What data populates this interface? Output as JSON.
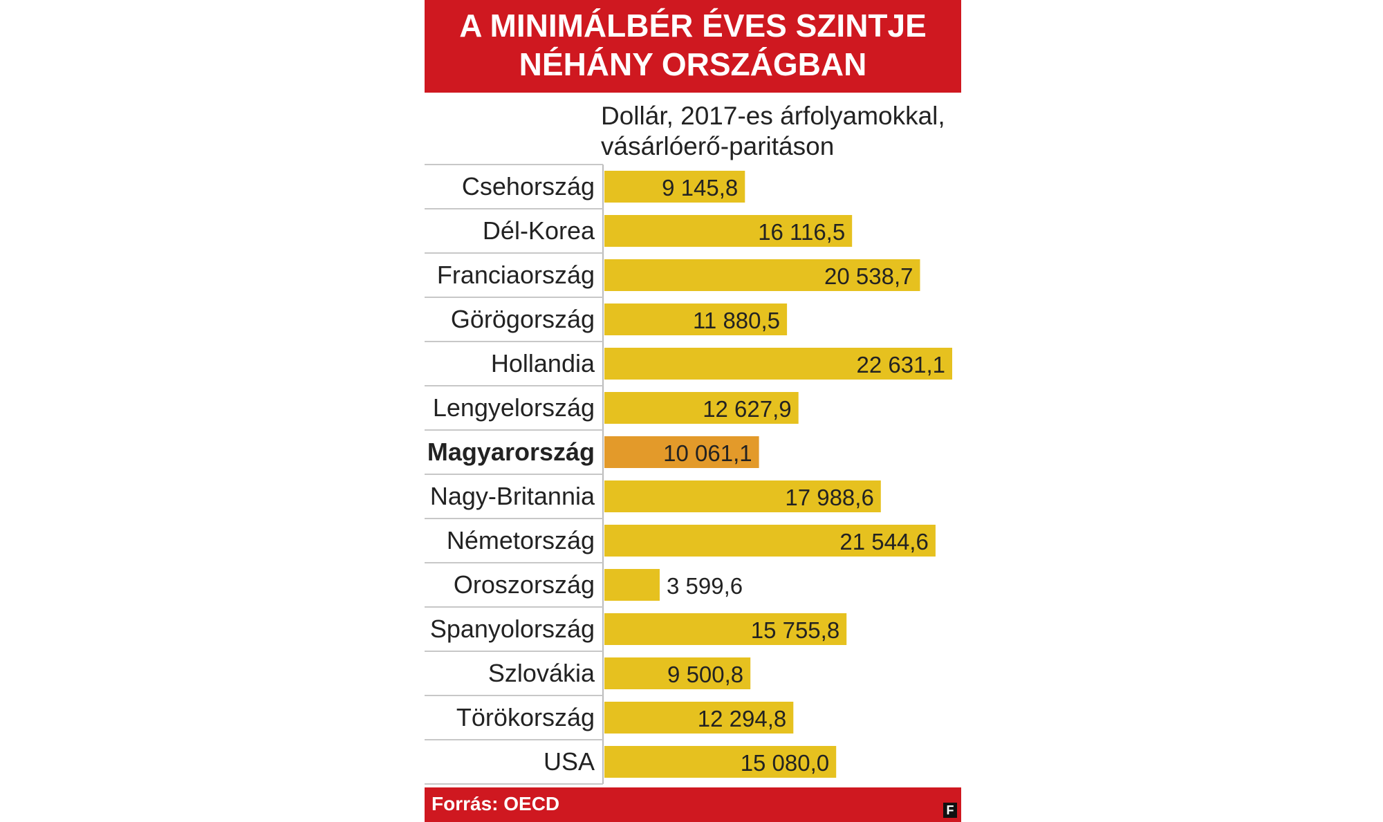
{
  "header": {
    "title_line1": "A MINIMÁLBÉR ÉVES SZINTJE",
    "title_line2": "NÉHÁNY ORSZÁGBAN",
    "subtitle_line1": "Dollár, 2017-es árfolyamokkal,",
    "subtitle_line2": "vásárlóerő-paritáson"
  },
  "footer": {
    "source": "Forrás: OECD",
    "logo": "F"
  },
  "colors": {
    "header_bg": "#cf1820",
    "bar": "#e6c11f",
    "bar_highlight": "#e39a2a"
  },
  "chart_data": {
    "type": "bar",
    "orientation": "horizontal",
    "title": "A MINIMÁLBÉR ÉVES SZINTJE NÉHÁNY ORSZÁGBAN",
    "subtitle": "Dollár, 2017-es árfolyamokkal, vásárlóerő-paritáson",
    "categories": [
      "Csehország",
      "Dél-Korea",
      "Franciaország",
      "Görögország",
      "Hollandia",
      "Lengyelország",
      "Magyarország",
      "Nagy-Britannia",
      "Németország",
      "Oroszország",
      "Spanyolország",
      "Szlovákia",
      "Törökország",
      "USA"
    ],
    "values": [
      9145.8,
      16116.5,
      20538.7,
      11880.5,
      22631.1,
      12627.9,
      10061.1,
      17988.6,
      21544.6,
      3599.6,
      15755.8,
      9500.8,
      12294.8,
      15080.0
    ],
    "value_labels": [
      "9 145,8",
      "16 116,5",
      "20 538,7",
      "11 880,5",
      "22 631,1",
      "12 627,9",
      "10 061,1",
      "17 988,6",
      "21 544,6",
      "3 599,6",
      "15 755,8",
      "9 500,8",
      "12 294,8",
      "15 080,0"
    ],
    "highlight": "Magyarország",
    "xlim": [
      0,
      22631.1
    ],
    "grid": false,
    "legend": "none"
  }
}
